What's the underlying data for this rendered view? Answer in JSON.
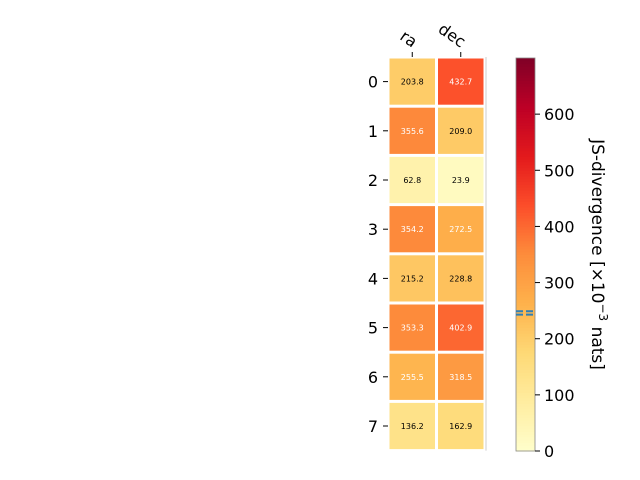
{
  "chart_data": {
    "type": "heatmap",
    "columns": [
      "ra",
      "dec"
    ],
    "rows": [
      "0",
      "1",
      "2",
      "3",
      "4",
      "5",
      "6",
      "7"
    ],
    "values": [
      [
        203.8,
        432.7
      ],
      [
        355.6,
        209.0
      ],
      [
        62.8,
        23.9
      ],
      [
        354.2,
        272.5
      ],
      [
        215.2,
        228.8
      ],
      [
        353.3,
        402.9
      ],
      [
        255.5,
        318.5
      ],
      [
        136.2,
        162.9
      ]
    ],
    "value_labels": [
      [
        "203.8",
        "432.7"
      ],
      [
        "355.6",
        "209.0"
      ],
      [
        "62.8",
        "23.9"
      ],
      [
        "354.2",
        "272.5"
      ],
      [
        "215.2",
        "228.8"
      ],
      [
        "353.3",
        "402.9"
      ],
      [
        "255.5",
        "318.5"
      ],
      [
        "136.2",
        "162.9"
      ]
    ],
    "colorbar": {
      "label_main": "JS-divergence [×10",
      "label_exp": "−3",
      "label_tail": " nats]",
      "range": [
        0,
        700
      ],
      "ticks": [
        0,
        100,
        200,
        300,
        400,
        500,
        600
      ],
      "tick_labels": [
        "0",
        "100",
        "200",
        "300",
        "400",
        "500",
        "600"
      ],
      "marker_values": [
        243,
        249
      ],
      "marker_color": "#2f7fb5",
      "colormap": "YlOrRd"
    }
  }
}
